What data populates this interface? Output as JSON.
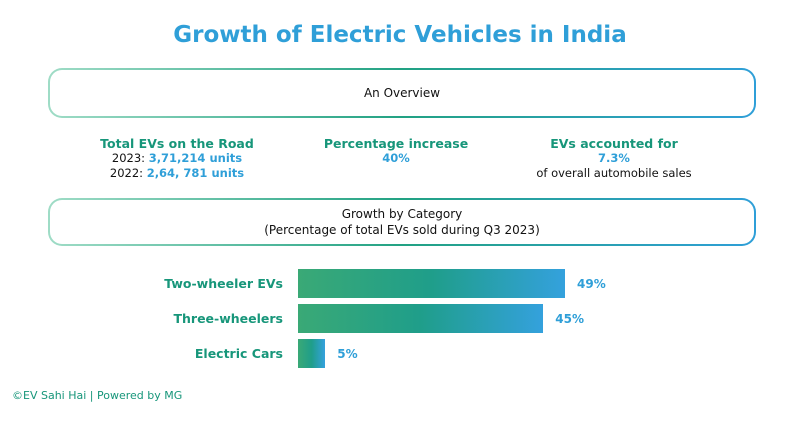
{
  "title": "Growth of Electric Vehicles in India",
  "overview_label": "An Overview",
  "stats": {
    "total": {
      "heading": "Total EVs on the Road",
      "y2023_label": "2023:",
      "y2023_value": "3,71,214 units",
      "y2022_label": "2022:",
      "y2022_value": "2,64, 781 units"
    },
    "increase": {
      "heading": "Percentage increase",
      "value": "40%"
    },
    "share": {
      "heading": "EVs accounted for",
      "value": "7.3%",
      "note": "of overall automobile sales"
    }
  },
  "category_box": {
    "line1": "Growth by Category",
    "line2": "(Percentage of total EVs sold during Q3 2023)"
  },
  "chart_data": {
    "type": "bar",
    "orientation": "horizontal",
    "categories": [
      "Two-wheeler EVs",
      "Three-wheelers",
      "Electric Cars"
    ],
    "values": [
      49,
      45,
      5
    ],
    "data_labels": [
      "49%",
      "45%",
      "5%"
    ],
    "bar_gradient": [
      "#3aa976",
      "#34a1dd"
    ]
  },
  "footer": "©EV Sahi Hai | Powered by MG"
}
